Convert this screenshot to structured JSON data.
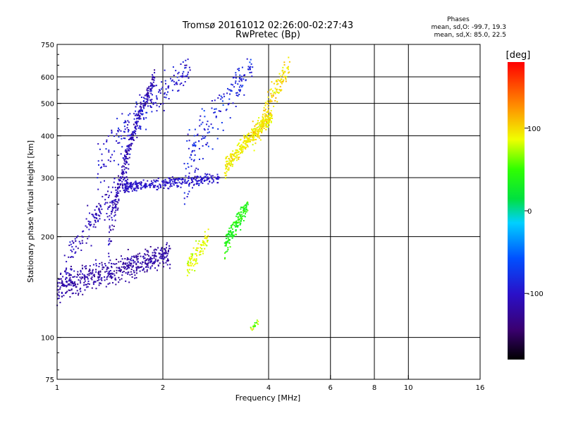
{
  "chart_data": {
    "type": "scatter",
    "title": "Tromsø 20161012 02:26:00-02:27:43",
    "subtitle": "RwPretec (Bp)",
    "xlabel": "Frequency [MHz]",
    "ylabel": "Stationary phase Virtual Height [km]",
    "x_scale": "log",
    "y_scale": "log",
    "xlim": [
      1,
      16
    ],
    "ylim": [
      75,
      750
    ],
    "x_ticks": [
      {
        "v": 1,
        "label": "1"
      },
      {
        "v": 2,
        "label": "2"
      },
      {
        "v": 4,
        "label": "4"
      },
      {
        "v": 6,
        "label": "6"
      },
      {
        "v": 8,
        "label": "8"
      },
      {
        "v": 10,
        "label": "10"
      },
      {
        "v": 16,
        "label": "16"
      }
    ],
    "x_gridlines": [
      2,
      4,
      6,
      8,
      10
    ],
    "y_ticks": [
      {
        "v": 75,
        "label": "75"
      },
      {
        "v": 100,
        "label": "100"
      },
      {
        "v": 200,
        "label": "200"
      },
      {
        "v": 300,
        "label": "300"
      },
      {
        "v": 400,
        "label": "400"
      },
      {
        "v": 500,
        "label": "500"
      },
      {
        "v": 600,
        "label": "600"
      },
      {
        "v": 750,
        "label": "750"
      }
    ],
    "y_gridlines": [
      100,
      200,
      300,
      400,
      500,
      600
    ],
    "grid": true,
    "stats": {
      "heading": "Phases",
      "line1": "mean, sd,O: -99.7, 19.3",
      "line2": "mean, sd,X: 85.0, 22.5"
    },
    "colorbar": {
      "unit_label": "[deg]",
      "range": [
        -180,
        180
      ],
      "ticks": [
        {
          "v": 100,
          "label": "100"
        },
        {
          "v": 0,
          "label": "0"
        },
        {
          "v": -100,
          "label": "-100"
        }
      ],
      "colormap": "rainbow (black-purple-blue-cyan-green-yellow-orange-red)"
    },
    "clusters": [
      {
        "id": "O-low-trace",
        "phase_deg": -118,
        "phase_sd": 15,
        "n": 520,
        "x_range": [
          1.0,
          2.1
        ],
        "y_start": 140,
        "y_end": 178,
        "spread": 28
      },
      {
        "id": "O-vertical-band",
        "phase_deg": -112,
        "phase_sd": 18,
        "n": 260,
        "x_range": [
          1.4,
          1.9
        ],
        "y_start": 190,
        "y_end": 600,
        "spread": 60
      },
      {
        "id": "O-F-layer-trace",
        "phase_deg": -100,
        "phase_sd": 12,
        "n": 300,
        "x_range": [
          1.55,
          2.9
        ],
        "y_start": 280,
        "y_end": 300,
        "spread": 22
      },
      {
        "id": "O-upper-scatter",
        "phase_deg": -95,
        "phase_sd": 20,
        "n": 220,
        "x_range": [
          1.3,
          2.4
        ],
        "y_start": 320,
        "y_end": 640,
        "spread": 120
      },
      {
        "id": "O-mid-scatter",
        "phase_deg": -108,
        "phase_sd": 16,
        "n": 180,
        "x_range": [
          1.05,
          1.6
        ],
        "y_start": 160,
        "y_end": 300,
        "spread": 50
      },
      {
        "id": "O-tall-spikes",
        "phase_deg": -85,
        "phase_sd": 22,
        "n": 180,
        "x_range": [
          2.3,
          3.6
        ],
        "y_start": 310,
        "y_end": 640,
        "spread": 150
      },
      {
        "id": "X-F-layer-trace",
        "phase_deg": 95,
        "phase_sd": 15,
        "n": 320,
        "x_range": [
          3.0,
          4.1
        ],
        "y_start": 320,
        "y_end": 460,
        "spread": 40
      },
      {
        "id": "X-upper-cusp",
        "phase_deg": 100,
        "phase_sd": 18,
        "n": 150,
        "x_range": [
          3.6,
          4.6
        ],
        "y_start": 380,
        "y_end": 640,
        "spread": 100
      },
      {
        "id": "X-lower-trace",
        "phase_deg": 40,
        "phase_sd": 22,
        "n": 160,
        "x_range": [
          3.0,
          3.5
        ],
        "y_start": 185,
        "y_end": 250,
        "spread": 30
      },
      {
        "id": "X-patch",
        "phase_deg": 85,
        "phase_sd": 15,
        "n": 90,
        "x_range": [
          2.35,
          2.7
        ],
        "y_start": 160,
        "y_end": 200,
        "spread": 25
      },
      {
        "id": "E-echo",
        "phase_deg": 70,
        "phase_sd": 40,
        "n": 18,
        "x_range": [
          3.55,
          3.75
        ],
        "y_start": 105,
        "y_end": 112,
        "spread": 5
      }
    ]
  }
}
